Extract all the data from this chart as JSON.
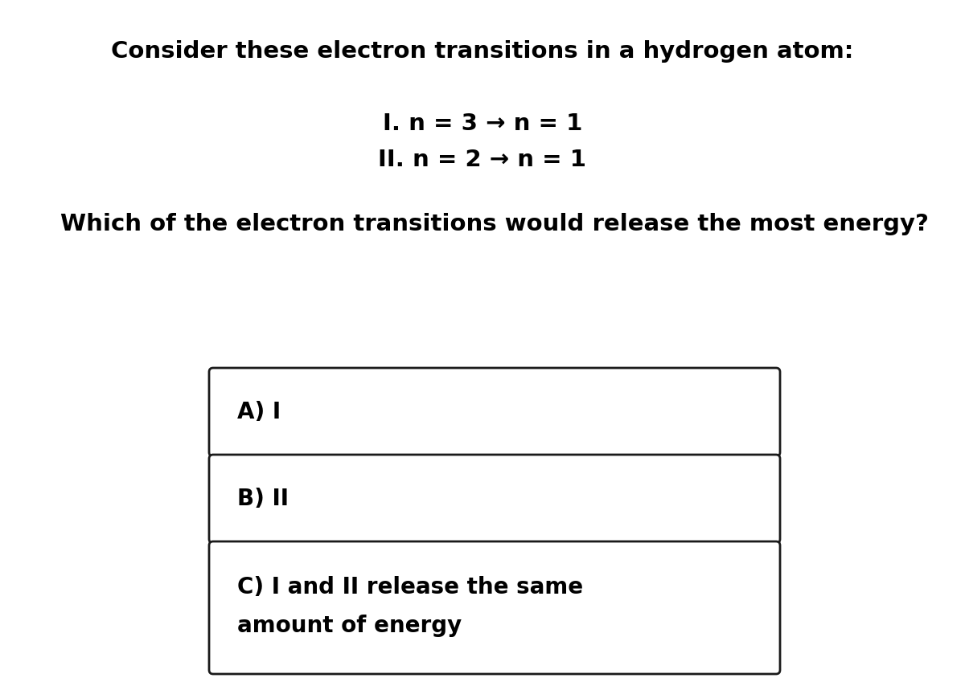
{
  "title": "Consider these electron transitions in a hydrogen atom:",
  "transition1": "I. n = 3 → n = 1",
  "transition2": "II. n = 2 → n = 1",
  "question": "Which of the electron transitions would release the most energy?",
  "option_a": "A) I",
  "option_b": "B) II",
  "option_c_line1": "C) I and II release the same",
  "option_c_line2": "amount of energy",
  "bg_color": "#ffffff",
  "text_color": "#000000",
  "box_edge_color": "#1a1a1a",
  "title_fontsize": 21,
  "transition_fontsize": 21,
  "question_fontsize": 21,
  "option_fontsize": 20,
  "font_family": "Arial"
}
